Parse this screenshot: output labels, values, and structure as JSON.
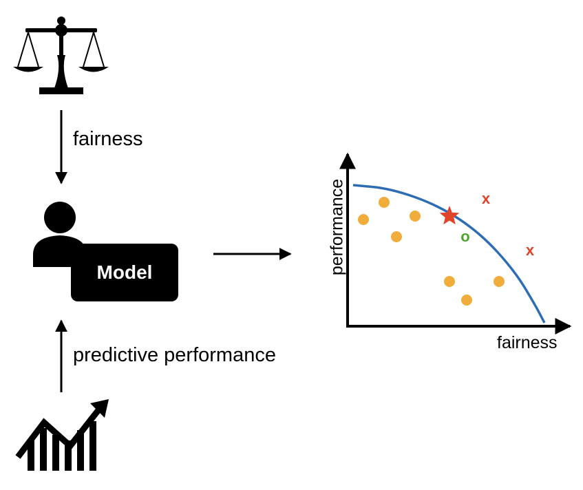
{
  "labels": {
    "fairness_arrow": "fairness",
    "performance_arrow": "predictive performance",
    "model": "Model"
  },
  "chart_data": {
    "type": "scatter",
    "xlabel": "fairness",
    "ylabel": "performance",
    "grid": false,
    "frontier_color": "#2e6db4",
    "points_color": "#f0ad3c",
    "x_marker_color": "#e2432b",
    "star_color": "#e2432b",
    "o_marker_color": "#4da32d",
    "x_marker_text": "x",
    "o_marker_text": "o",
    "frontier": [
      [
        5,
        205
      ],
      [
        60,
        200
      ],
      [
        130,
        175
      ],
      [
        190,
        135
      ],
      [
        240,
        80
      ],
      [
        270,
        30
      ],
      [
        283,
        5
      ]
    ],
    "points": [
      [
        50,
        180
      ],
      [
        20,
        155
      ],
      [
        95,
        160
      ],
      [
        68,
        130
      ],
      [
        145,
        65
      ],
      [
        217,
        65
      ],
      [
        170,
        38
      ]
    ],
    "x_markers": [
      [
        198,
        185
      ],
      [
        262,
        110
      ]
    ],
    "star": [
      145,
      160
    ],
    "o_marker": [
      168,
      130
    ]
  },
  "icons": {
    "scales": "scales-of-justice-icon",
    "person": "person-icon",
    "growth": "growth-chart-icon"
  }
}
